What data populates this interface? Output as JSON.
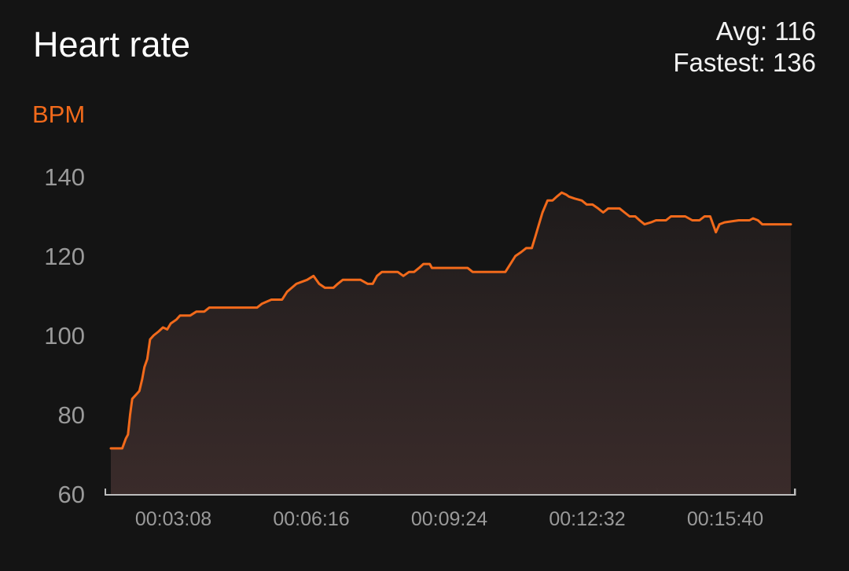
{
  "header": {
    "title": "Heart rate",
    "avg_label": "Avg: 116",
    "fastest_label": "Fastest: 136"
  },
  "colors": {
    "background": "#141414",
    "line": "#f26a1b",
    "axis": "#bdbdbd",
    "tick_text": "#9a9a9a"
  },
  "chart_data": {
    "type": "area",
    "ylabel": "BPM",
    "ylim": [
      60,
      140
    ],
    "yticks": [
      60,
      80,
      100,
      120,
      140
    ],
    "xlim_seconds": [
      0,
      1200
    ],
    "xticks": [
      {
        "t": 188,
        "label": "00:03:08"
      },
      {
        "t": 376,
        "label": "00:06:16"
      },
      {
        "t": 564,
        "label": "00:09:24"
      },
      {
        "t": 752,
        "label": "00:12:32"
      },
      {
        "t": 940,
        "label": "00:15:40"
      }
    ],
    "grid": false,
    "series": [
      {
        "points": [
          [
            0,
            71.5
          ],
          [
            16,
            71.5
          ],
          [
            21,
            74
          ],
          [
            24,
            75
          ],
          [
            27,
            80
          ],
          [
            30,
            84
          ],
          [
            35,
            85
          ],
          [
            40,
            86
          ],
          [
            44,
            89
          ],
          [
            47,
            92
          ],
          [
            51,
            94
          ],
          [
            55,
            99
          ],
          [
            60,
            100
          ],
          [
            67,
            101
          ],
          [
            73,
            102
          ],
          [
            79,
            101.5
          ],
          [
            84,
            103
          ],
          [
            92,
            104
          ],
          [
            97,
            105
          ],
          [
            111,
            105
          ],
          [
            120,
            106
          ],
          [
            131,
            106
          ],
          [
            138,
            107
          ],
          [
            160,
            107
          ],
          [
            180,
            107
          ],
          [
            205,
            107
          ],
          [
            212,
            108
          ],
          [
            225,
            109
          ],
          [
            240,
            109
          ],
          [
            247,
            111
          ],
          [
            260,
            113
          ],
          [
            275,
            114
          ],
          [
            284,
            115
          ],
          [
            292,
            113
          ],
          [
            300,
            112
          ],
          [
            312,
            112
          ],
          [
            318,
            113
          ],
          [
            325,
            114
          ],
          [
            332,
            114
          ],
          [
            342,
            114
          ],
          [
            350,
            114
          ],
          [
            360,
            113
          ],
          [
            367,
            113
          ],
          [
            373,
            115
          ],
          [
            380,
            116
          ],
          [
            392,
            116
          ],
          [
            402,
            116
          ],
          [
            410,
            115
          ],
          [
            418,
            116
          ],
          [
            425,
            116
          ],
          [
            432,
            117
          ],
          [
            438,
            118
          ],
          [
            447,
            118
          ],
          [
            450,
            117
          ],
          [
            470,
            117
          ],
          [
            480,
            117
          ],
          [
            500,
            117
          ],
          [
            507,
            116
          ],
          [
            520,
            116
          ],
          [
            540,
            116
          ],
          [
            553,
            116
          ],
          [
            560,
            118
          ],
          [
            567,
            120
          ],
          [
            575,
            121
          ],
          [
            582,
            122
          ],
          [
            590,
            122
          ],
          [
            595,
            125
          ],
          [
            600,
            128
          ],
          [
            605,
            131
          ],
          [
            612,
            134
          ],
          [
            619,
            134
          ],
          [
            625,
            135
          ],
          [
            632,
            136
          ],
          [
            638,
            135.5
          ],
          [
            642,
            135
          ],
          [
            650,
            134.5
          ],
          [
            660,
            134
          ],
          [
            667,
            133
          ],
          [
            675,
            133
          ],
          [
            683,
            132
          ],
          [
            690,
            131
          ],
          [
            697,
            132
          ],
          [
            705,
            132
          ],
          [
            713,
            132
          ],
          [
            720,
            131
          ],
          [
            727,
            130
          ],
          [
            735,
            130
          ],
          [
            741,
            129
          ],
          [
            748,
            128
          ],
          [
            757,
            128.5
          ],
          [
            764,
            129
          ],
          [
            771,
            129
          ],
          [
            778,
            129
          ],
          [
            785,
            130
          ],
          [
            795,
            130
          ],
          [
            805,
            130
          ],
          [
            815,
            129
          ],
          [
            825,
            129
          ],
          [
            832,
            130
          ],
          [
            840,
            130
          ],
          [
            848,
            126
          ],
          [
            853,
            128
          ],
          [
            860,
            128.5
          ],
          [
            880,
            129
          ],
          [
            895,
            129
          ],
          [
            900,
            129.5
          ],
          [
            907,
            129
          ],
          [
            913,
            128
          ],
          [
            920,
            128
          ],
          [
            935,
            128
          ],
          [
            945,
            128
          ],
          [
            953,
            128
          ]
        ]
      }
    ]
  }
}
